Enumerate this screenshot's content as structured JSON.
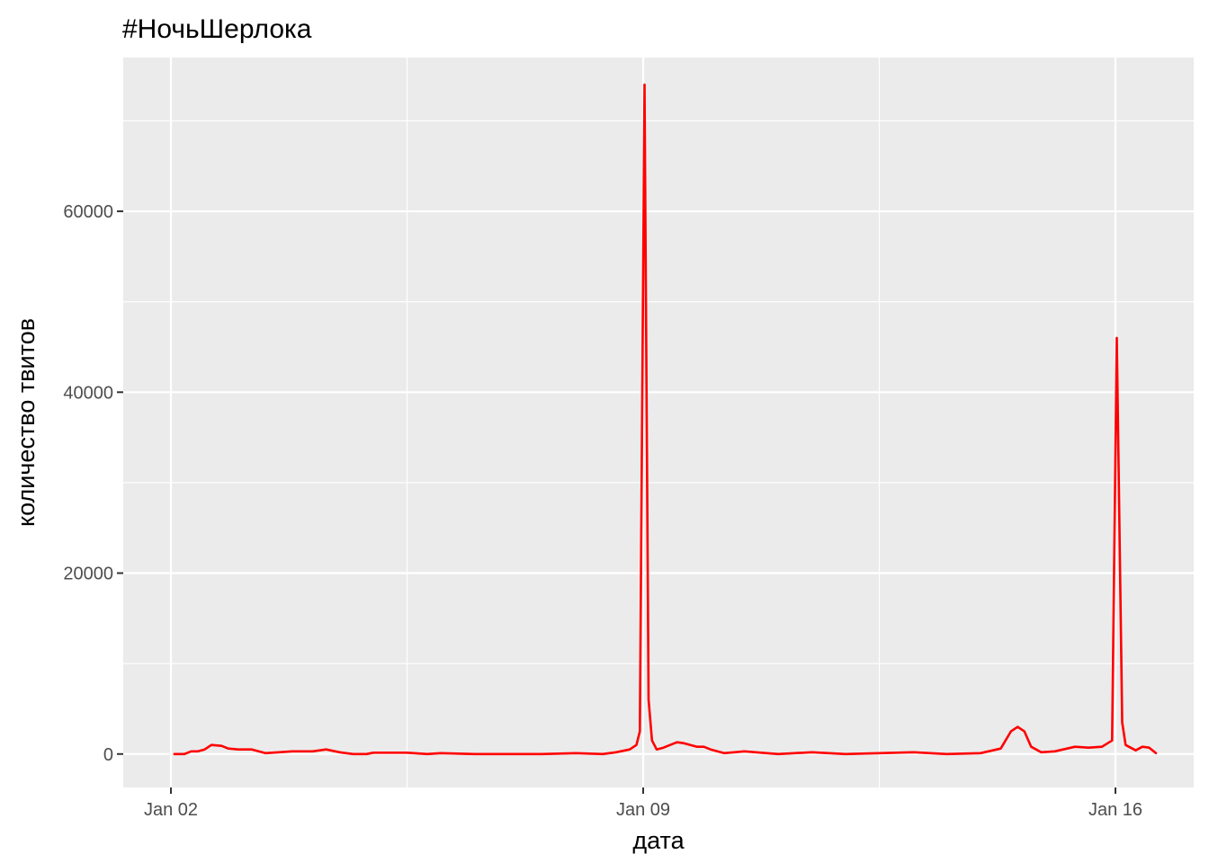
{
  "chart_data": {
    "type": "line",
    "title": "#НочьШерлока",
    "xlabel": "дата",
    "ylabel": "количество твитов",
    "x_ticks": [
      "Jan 02",
      "Jan 09",
      "Jan 16"
    ],
    "y_ticks": [
      "0",
      "20000",
      "40000",
      "60000"
    ],
    "ylim": [
      -3700,
      77000
    ],
    "grid": true,
    "panel_background": "#EBEBEB",
    "grid_color": "#FFFFFF",
    "series": [
      {
        "color": "#FF0000",
        "x_days_from_jan02": [
          0.05,
          0.2,
          0.3,
          0.4,
          0.5,
          0.6,
          0.75,
          0.85,
          1.0,
          1.2,
          1.4,
          1.6,
          1.8,
          1.9,
          2.1,
          2.3,
          2.5,
          2.7,
          2.8,
          2.9,
          3.0,
          3.2,
          3.5,
          3.8,
          4.0,
          4.5,
          5.0,
          5.5,
          6.0,
          6.4,
          6.6,
          6.8,
          6.9,
          6.95,
          7.02,
          7.08,
          7.13,
          7.2,
          7.3,
          7.4,
          7.5,
          7.6,
          7.7,
          7.8,
          7.9,
          8.0,
          8.2,
          8.5,
          9.0,
          9.5,
          10.0,
          10.5,
          11.0,
          11.5,
          12.0,
          12.3,
          12.45,
          12.55,
          12.65,
          12.75,
          12.9,
          13.1,
          13.4,
          13.6,
          13.8,
          13.95,
          14.02,
          14.1,
          14.15,
          14.3,
          14.4,
          14.5,
          14.6
        ],
        "values": [
          0,
          0,
          300,
          300,
          500,
          1000,
          900,
          600,
          500,
          500,
          100,
          200,
          300,
          300,
          300,
          500,
          200,
          0,
          0,
          0,
          150,
          150,
          150,
          0,
          100,
          0,
          0,
          0,
          100,
          0,
          200,
          500,
          1000,
          2500,
          74000,
          6000,
          1500,
          500,
          700,
          1000,
          1300,
          1200,
          1000,
          800,
          800,
          500,
          100,
          300,
          0,
          200,
          0,
          100,
          200,
          0,
          100,
          600,
          2500,
          3000,
          2500,
          800,
          200,
          300,
          800,
          700,
          800,
          1500,
          46000,
          3500,
          1000,
          400,
          800,
          700,
          100
        ]
      }
    ]
  }
}
